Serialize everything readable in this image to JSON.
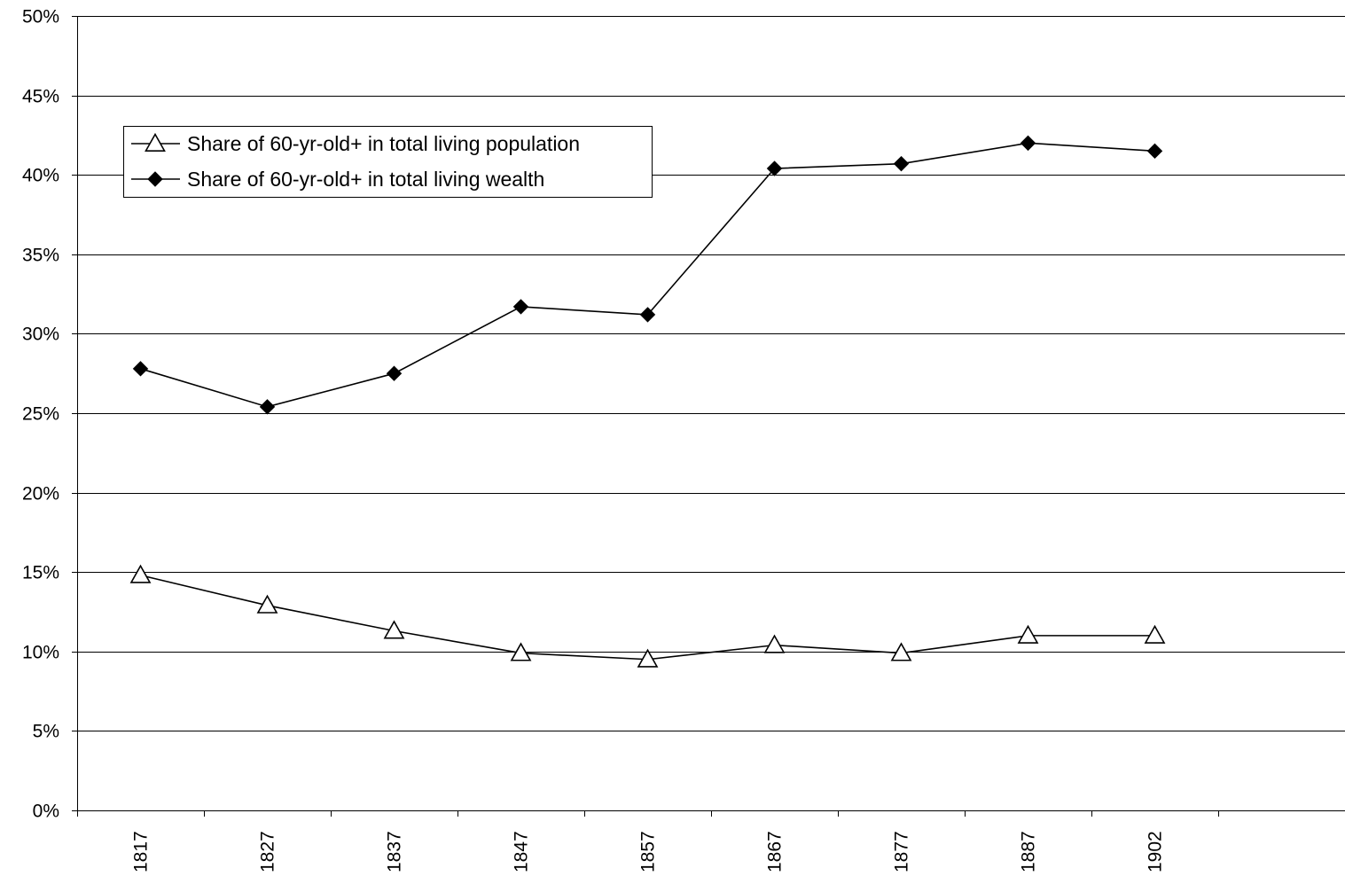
{
  "chart_data": {
    "type": "line",
    "title": "",
    "xlabel": "",
    "ylabel": "",
    "categories": [
      "1817",
      "1827",
      "1837",
      "1847",
      "1857",
      "1867",
      "1877",
      "1887",
      "1902"
    ],
    "extra_category_slots": 1,
    "ylim": [
      0,
      50
    ],
    "yticks": [
      0,
      5,
      10,
      15,
      20,
      25,
      30,
      35,
      40,
      45,
      50
    ],
    "ytick_labels": [
      "0%",
      "5%",
      "10%",
      "15%",
      "20%",
      "25%",
      "30%",
      "35%",
      "40%",
      "45%",
      "50%"
    ],
    "grid": true,
    "legend_position": "top-left",
    "series": [
      {
        "name": "Share of 60-yr-old+ in total living population",
        "marker": "open-triangle",
        "color": "#000000",
        "values": [
          14.8,
          12.9,
          11.3,
          9.9,
          9.5,
          10.4,
          9.9,
          11.0,
          11.0
        ]
      },
      {
        "name": "Share of 60-yr-old+ in total living wealth",
        "marker": "filled-diamond",
        "color": "#000000",
        "values": [
          27.8,
          25.4,
          27.5,
          31.7,
          31.2,
          40.4,
          40.7,
          42.0,
          41.5
        ]
      }
    ]
  }
}
